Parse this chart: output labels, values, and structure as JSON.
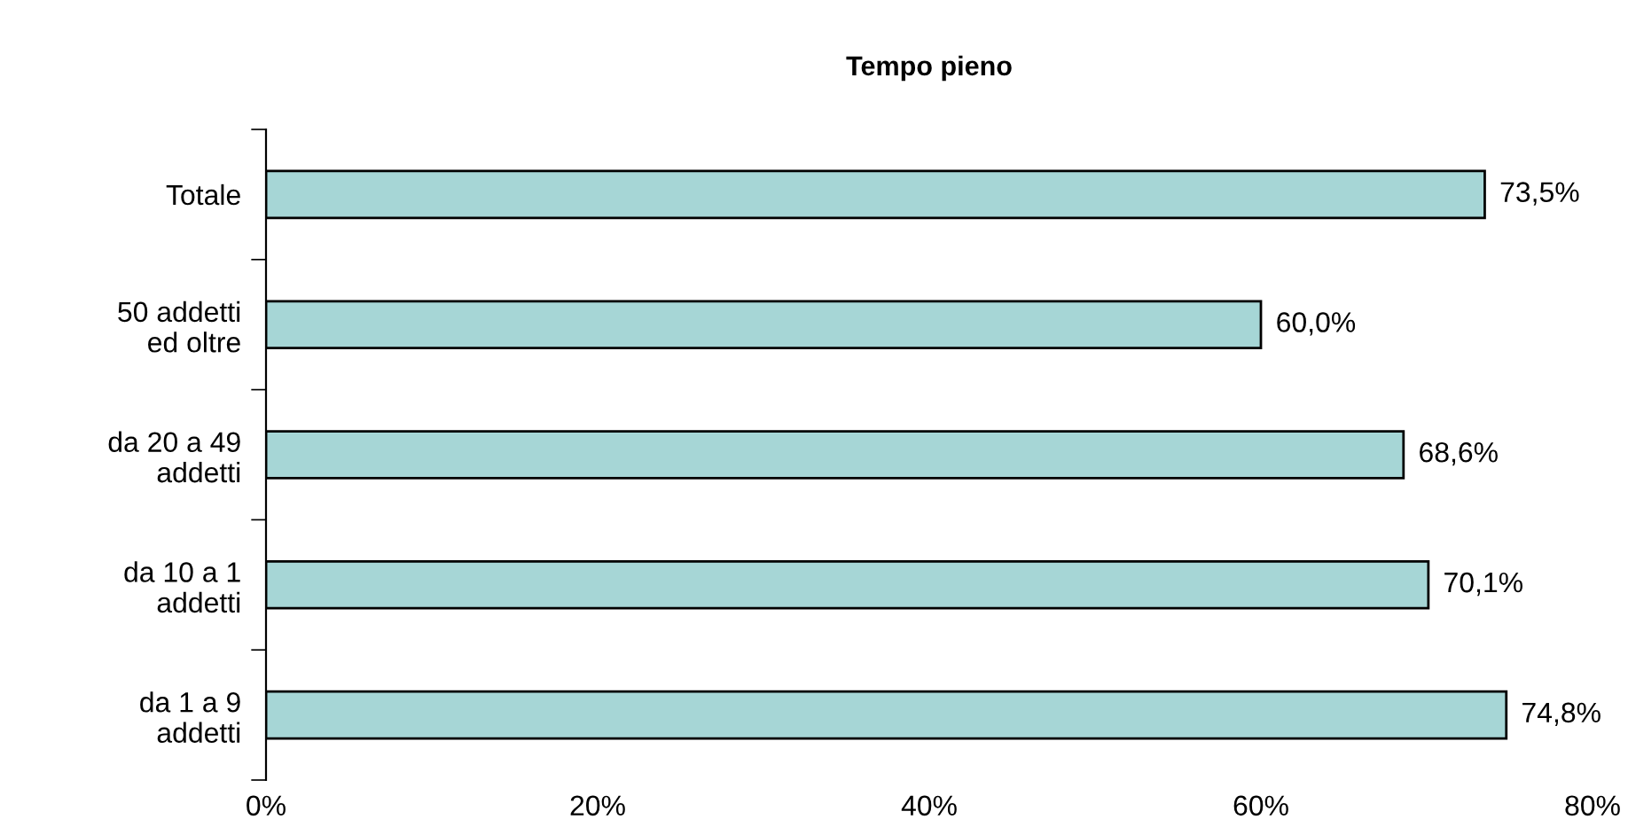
{
  "chart_data": {
    "type": "bar",
    "orientation": "horizontal",
    "title": "Tempo pieno",
    "categories": [
      "Totale",
      "50 addetti\ned oltre",
      "da 20 a 49\naddetti",
      "da 10 a 1\naddetti",
      "da 1 a 9\naddetti"
    ],
    "values": [
      73.5,
      60.0,
      68.6,
      70.1,
      74.8
    ],
    "value_labels": [
      "73,5%",
      "60,0%",
      "68,6%",
      "70,1%",
      "74,8%"
    ],
    "color": "#a6d6d6",
    "xlim": [
      0,
      80
    ],
    "xticks": [
      {
        "value": 0,
        "label": "0%"
      },
      {
        "value": 20,
        "label": "20%"
      },
      {
        "value": 40,
        "label": "40%"
      },
      {
        "value": 60,
        "label": "60%"
      },
      {
        "value": 80,
        "label": "80%"
      }
    ],
    "grid": false,
    "legend": false
  }
}
